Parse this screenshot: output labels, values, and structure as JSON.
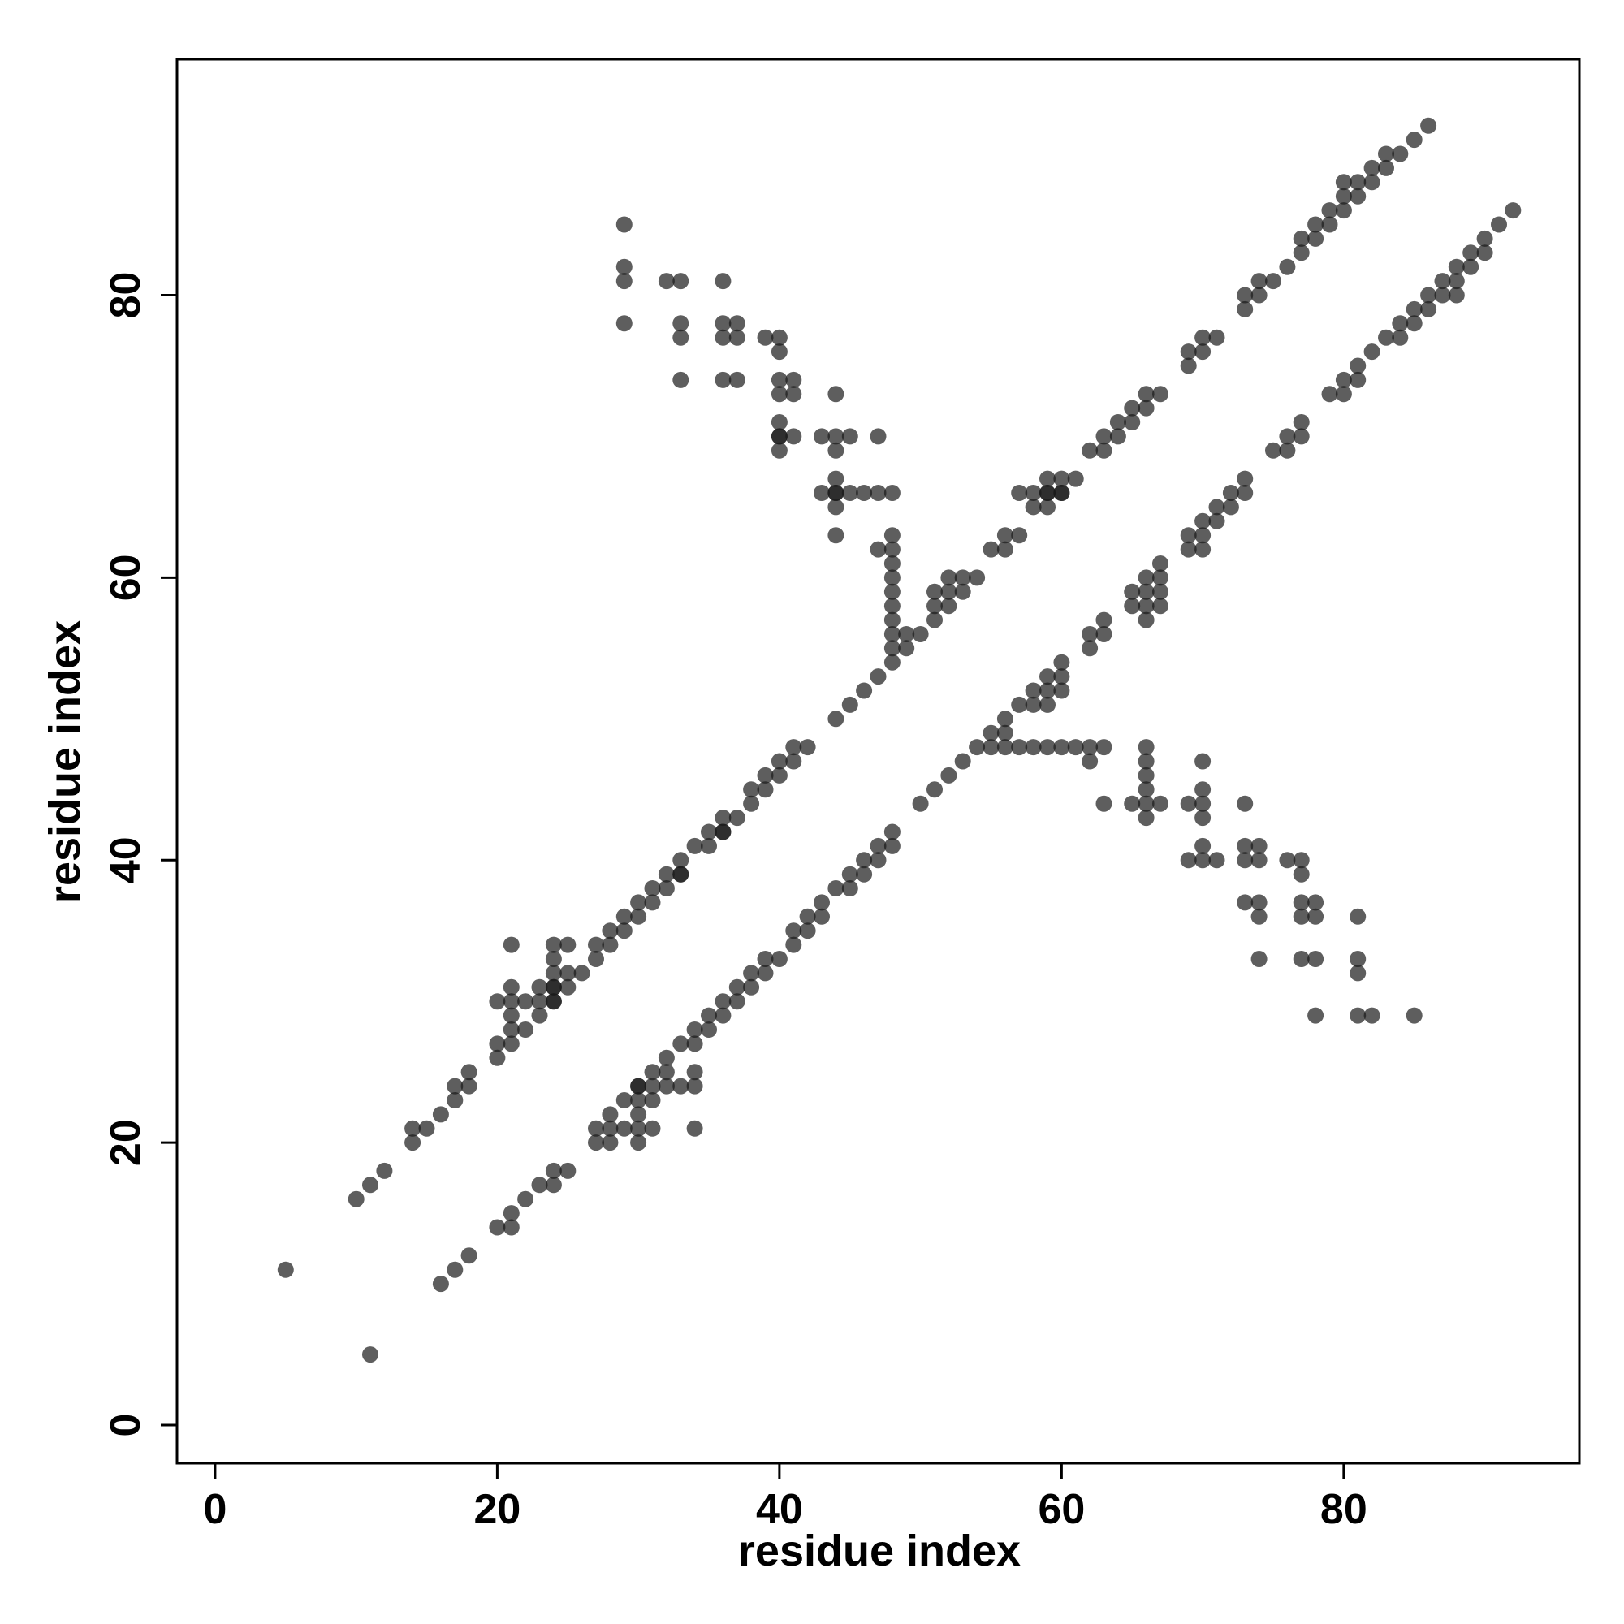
{
  "chart_data": {
    "type": "scatter",
    "title": "",
    "xlabel": "residue index",
    "ylabel": "residue index",
    "xlim": [
      -2.7,
      96.7
    ],
    "ylim": [
      -2.7,
      96.7
    ],
    "xticks": [
      0,
      20,
      40,
      60,
      80
    ],
    "yticks": [
      0,
      20,
      40,
      60,
      80
    ],
    "grid": false,
    "legend": "none",
    "point_color": "#1a1a1a",
    "point_opacity": 0.7,
    "points": [
      [
        5,
        11
      ],
      [
        11,
        5
      ],
      [
        10,
        16
      ],
      [
        11,
        17
      ],
      [
        12,
        18
      ],
      [
        14,
        20
      ],
      [
        14,
        21
      ],
      [
        15,
        21
      ],
      [
        16,
        22
      ],
      [
        17,
        23
      ],
      [
        17,
        24
      ],
      [
        18,
        24
      ],
      [
        18,
        25
      ],
      [
        20,
        26
      ],
      [
        20,
        27
      ],
      [
        21,
        27
      ],
      [
        21,
        28
      ],
      [
        22,
        28
      ],
      [
        21,
        29
      ],
      [
        23,
        29
      ],
      [
        20,
        30
      ],
      [
        21,
        30
      ],
      [
        22,
        30
      ],
      [
        23,
        30
      ],
      [
        24,
        30
      ],
      [
        24,
        30
      ],
      [
        21,
        31
      ],
      [
        23,
        31
      ],
      [
        24,
        31
      ],
      [
        25,
        31
      ],
      [
        24,
        31
      ],
      [
        24,
        32
      ],
      [
        25,
        32
      ],
      [
        26,
        32
      ],
      [
        24,
        33
      ],
      [
        27,
        33
      ],
      [
        21,
        34
      ],
      [
        24,
        34
      ],
      [
        25,
        34
      ],
      [
        27,
        34
      ],
      [
        28,
        34
      ],
      [
        28,
        35
      ],
      [
        29,
        35
      ],
      [
        29,
        36
      ],
      [
        30,
        36
      ],
      [
        30,
        37
      ],
      [
        31,
        37
      ],
      [
        31,
        38
      ],
      [
        32,
        38
      ],
      [
        32,
        39
      ],
      [
        33,
        39
      ],
      [
        33,
        39
      ],
      [
        33,
        40
      ],
      [
        34,
        41
      ],
      [
        35,
        41
      ],
      [
        35,
        42
      ],
      [
        36,
        42
      ],
      [
        36,
        42
      ],
      [
        36,
        43
      ],
      [
        37,
        43
      ],
      [
        38,
        44
      ],
      [
        38,
        45
      ],
      [
        39,
        45
      ],
      [
        39,
        46
      ],
      [
        40,
        46
      ],
      [
        40,
        47
      ],
      [
        41,
        47
      ],
      [
        41,
        48
      ],
      [
        42,
        48
      ],
      [
        44,
        50
      ],
      [
        45,
        51
      ],
      [
        46,
        52
      ],
      [
        47,
        53
      ],
      [
        48,
        54
      ],
      [
        48,
        55
      ],
      [
        49,
        55
      ],
      [
        48,
        56
      ],
      [
        49,
        56
      ],
      [
        50,
        56
      ],
      [
        48,
        57
      ],
      [
        51,
        57
      ],
      [
        48,
        58
      ],
      [
        51,
        58
      ],
      [
        52,
        58
      ],
      [
        48,
        59
      ],
      [
        51,
        59
      ],
      [
        52,
        59
      ],
      [
        53,
        59
      ],
      [
        48,
        60
      ],
      [
        52,
        60
      ],
      [
        53,
        60
      ],
      [
        54,
        60
      ],
      [
        48,
        61
      ],
      [
        47,
        62
      ],
      [
        48,
        62
      ],
      [
        55,
        62
      ],
      [
        56,
        62
      ],
      [
        44,
        63
      ],
      [
        48,
        63
      ],
      [
        56,
        63
      ],
      [
        57,
        63
      ],
      [
        44,
        65
      ],
      [
        58,
        65
      ],
      [
        59,
        65
      ],
      [
        43,
        66
      ],
      [
        44,
        66
      ],
      [
        44,
        66
      ],
      [
        45,
        66
      ],
      [
        46,
        66
      ],
      [
        47,
        66
      ],
      [
        48,
        66
      ],
      [
        57,
        66
      ],
      [
        58,
        66
      ],
      [
        59,
        66
      ],
      [
        59,
        66
      ],
      [
        60,
        66
      ],
      [
        60,
        66
      ],
      [
        44,
        67
      ],
      [
        59,
        67
      ],
      [
        60,
        67
      ],
      [
        61,
        67
      ],
      [
        44,
        69
      ],
      [
        40,
        69
      ],
      [
        62,
        69
      ],
      [
        63,
        69
      ],
      [
        40,
        70
      ],
      [
        40,
        70
      ],
      [
        41,
        70
      ],
      [
        43,
        70
      ],
      [
        44,
        70
      ],
      [
        45,
        70
      ],
      [
        47,
        70
      ],
      [
        63,
        70
      ],
      [
        64,
        70
      ],
      [
        40,
        71
      ],
      [
        64,
        71
      ],
      [
        65,
        71
      ],
      [
        65,
        72
      ],
      [
        66,
        72
      ],
      [
        44,
        73
      ],
      [
        41,
        73
      ],
      [
        40,
        73
      ],
      [
        66,
        73
      ],
      [
        67,
        73
      ],
      [
        36,
        74
      ],
      [
        37,
        74
      ],
      [
        33,
        74
      ],
      [
        40,
        74
      ],
      [
        41,
        74
      ],
      [
        69,
        75
      ],
      [
        69,
        76
      ],
      [
        70,
        76
      ],
      [
        40,
        76
      ],
      [
        36,
        77
      ],
      [
        37,
        77
      ],
      [
        33,
        77
      ],
      [
        39,
        77
      ],
      [
        40,
        77
      ],
      [
        70,
        77
      ],
      [
        71,
        77
      ],
      [
        29,
        78
      ],
      [
        33,
        78
      ],
      [
        36,
        78
      ],
      [
        37,
        78
      ],
      [
        73,
        79
      ],
      [
        73,
        80
      ],
      [
        74,
        80
      ],
      [
        29,
        81
      ],
      [
        32,
        81
      ],
      [
        33,
        81
      ],
      [
        36,
        81
      ],
      [
        74,
        81
      ],
      [
        75,
        81
      ],
      [
        29,
        82
      ],
      [
        76,
        82
      ],
      [
        77,
        83
      ],
      [
        77,
        84
      ],
      [
        78,
        84
      ],
      [
        78,
        85
      ],
      [
        79,
        85
      ],
      [
        29,
        85
      ],
      [
        79,
        86
      ],
      [
        80,
        86
      ],
      [
        80,
        87
      ],
      [
        81,
        87
      ],
      [
        81,
        88
      ],
      [
        82,
        88
      ],
      [
        80,
        88
      ],
      [
        82,
        89
      ],
      [
        83,
        89
      ],
      [
        83,
        90
      ],
      [
        84,
        90
      ],
      [
        85,
        91
      ],
      [
        86,
        92
      ],
      [
        16,
        10
      ],
      [
        17,
        11
      ],
      [
        18,
        12
      ],
      [
        20,
        14
      ],
      [
        21,
        14
      ],
      [
        21,
        15
      ],
      [
        22,
        16
      ],
      [
        23,
        17
      ],
      [
        24,
        17
      ],
      [
        24,
        18
      ],
      [
        25,
        18
      ],
      [
        27,
        20
      ],
      [
        28,
        20
      ],
      [
        30,
        20
      ],
      [
        27,
        21
      ],
      [
        28,
        21
      ],
      [
        29,
        21
      ],
      [
        30,
        21
      ],
      [
        31,
        21
      ],
      [
        34,
        21
      ],
      [
        28,
        22
      ],
      [
        30,
        22
      ],
      [
        29,
        23
      ],
      [
        30,
        23
      ],
      [
        31,
        23
      ],
      [
        30,
        24
      ],
      [
        30,
        24
      ],
      [
        31,
        24
      ],
      [
        32,
        24
      ],
      [
        33,
        24
      ],
      [
        34,
        24
      ],
      [
        31,
        25
      ],
      [
        32,
        25
      ],
      [
        34,
        25
      ],
      [
        32,
        26
      ],
      [
        33,
        27
      ],
      [
        34,
        27
      ],
      [
        34,
        28
      ],
      [
        35,
        28
      ],
      [
        35,
        29
      ],
      [
        36,
        29
      ],
      [
        36,
        30
      ],
      [
        37,
        30
      ],
      [
        37,
        31
      ],
      [
        38,
        31
      ],
      [
        38,
        32
      ],
      [
        39,
        32
      ],
      [
        39,
        33
      ],
      [
        40,
        33
      ],
      [
        41,
        34
      ],
      [
        41,
        35
      ],
      [
        42,
        35
      ],
      [
        42,
        36
      ],
      [
        43,
        36
      ],
      [
        43,
        37
      ],
      [
        44,
        38
      ],
      [
        45,
        38
      ],
      [
        45,
        39
      ],
      [
        46,
        39
      ],
      [
        46,
        40
      ],
      [
        47,
        40
      ],
      [
        47,
        41
      ],
      [
        48,
        41
      ],
      [
        48,
        42
      ],
      [
        50,
        44
      ],
      [
        51,
        45
      ],
      [
        52,
        46
      ],
      [
        53,
        47
      ],
      [
        54,
        48
      ],
      [
        55,
        48
      ],
      [
        56,
        48
      ],
      [
        57,
        48
      ],
      [
        58,
        48
      ],
      [
        59,
        48
      ],
      [
        60,
        48
      ],
      [
        61,
        48
      ],
      [
        62,
        48
      ],
      [
        63,
        48
      ],
      [
        55,
        49
      ],
      [
        56,
        49
      ],
      [
        56,
        50
      ],
      [
        57,
        51
      ],
      [
        58,
        51
      ],
      [
        59,
        51
      ],
      [
        58,
        52
      ],
      [
        59,
        52
      ],
      [
        60,
        52
      ],
      [
        59,
        53
      ],
      [
        60,
        53
      ],
      [
        60,
        54
      ],
      [
        62,
        55
      ],
      [
        62,
        56
      ],
      [
        63,
        56
      ],
      [
        63,
        57
      ],
      [
        66,
        57
      ],
      [
        65,
        58
      ],
      [
        66,
        58
      ],
      [
        67,
        58
      ],
      [
        65,
        59
      ],
      [
        66,
        59
      ],
      [
        67,
        59
      ],
      [
        66,
        60
      ],
      [
        67,
        60
      ],
      [
        67,
        61
      ],
      [
        69,
        62
      ],
      [
        70,
        62
      ],
      [
        69,
        63
      ],
      [
        70,
        63
      ],
      [
        70,
        64
      ],
      [
        71,
        64
      ],
      [
        71,
        65
      ],
      [
        72,
        65
      ],
      [
        72,
        66
      ],
      [
        73,
        66
      ],
      [
        73,
        67
      ],
      [
        75,
        69
      ],
      [
        76,
        69
      ],
      [
        76,
        70
      ],
      [
        77,
        70
      ],
      [
        77,
        71
      ],
      [
        79,
        73
      ],
      [
        80,
        73
      ],
      [
        80,
        74
      ],
      [
        81,
        74
      ],
      [
        81,
        75
      ],
      [
        82,
        76
      ],
      [
        83,
        77
      ],
      [
        84,
        77
      ],
      [
        84,
        78
      ],
      [
        85,
        78
      ],
      [
        85,
        79
      ],
      [
        86,
        79
      ],
      [
        86,
        80
      ],
      [
        87,
        80
      ],
      [
        88,
        80
      ],
      [
        87,
        81
      ],
      [
        88,
        81
      ],
      [
        88,
        82
      ],
      [
        89,
        82
      ],
      [
        89,
        83
      ],
      [
        90,
        83
      ],
      [
        90,
        84
      ],
      [
        91,
        85
      ],
      [
        92,
        86
      ],
      [
        62,
        47
      ],
      [
        66,
        48
      ],
      [
        66,
        47
      ],
      [
        66,
        46
      ],
      [
        66,
        45
      ],
      [
        70,
        47
      ],
      [
        63,
        44
      ],
      [
        65,
        44
      ],
      [
        66,
        44
      ],
      [
        67,
        44
      ],
      [
        69,
        44
      ],
      [
        70,
        44
      ],
      [
        66,
        43
      ],
      [
        70,
        45
      ],
      [
        70,
        43
      ],
      [
        73,
        44
      ],
      [
        69,
        40
      ],
      [
        70,
        40
      ],
      [
        71,
        40
      ],
      [
        70,
        41
      ],
      [
        73,
        41
      ],
      [
        74,
        41
      ],
      [
        73,
        40
      ],
      [
        74,
        40
      ],
      [
        76,
        40
      ],
      [
        77,
        40
      ],
      [
        77,
        39
      ],
      [
        73,
        37
      ],
      [
        74,
        37
      ],
      [
        77,
        37
      ],
      [
        78,
        37
      ],
      [
        74,
        36
      ],
      [
        77,
        36
      ],
      [
        78,
        36
      ],
      [
        81,
        36
      ],
      [
        74,
        33
      ],
      [
        77,
        33
      ],
      [
        78,
        33
      ],
      [
        81,
        33
      ],
      [
        81,
        32
      ],
      [
        78,
        29
      ],
      [
        81,
        29
      ],
      [
        82,
        29
      ],
      [
        85,
        29
      ]
    ]
  }
}
